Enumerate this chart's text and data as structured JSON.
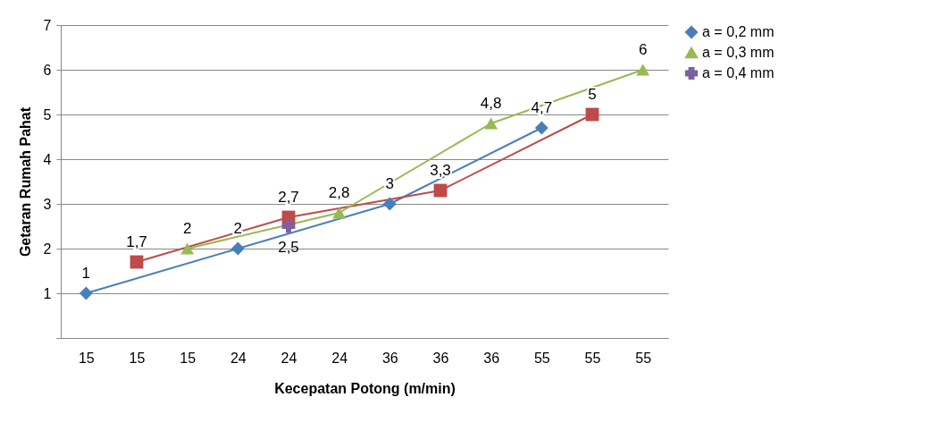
{
  "chart_data": {
    "type": "line",
    "xlabel": "Kecepatan Potong (m/min)",
    "ylabel": "Getaran Rumah Pahat",
    "categories": [
      "15",
      "15",
      "15",
      "24",
      "24",
      "24",
      "36",
      "36",
      "36",
      "55",
      "55",
      "55"
    ],
    "series": [
      {
        "name": "a = 0,2 mm",
        "color": "#4a7ebb",
        "marker": "diamond",
        "values": [
          1,
          null,
          null,
          2,
          null,
          null,
          3,
          null,
          null,
          4.7,
          null,
          null
        ],
        "value_labels": [
          "1",
          null,
          null,
          "2",
          null,
          null,
          "3",
          null,
          null,
          "4,7",
          null,
          null
        ]
      },
      {
        "color": "#be4b48",
        "marker": "square",
        "values": [
          null,
          1.7,
          null,
          null,
          2.7,
          null,
          null,
          3.3,
          null,
          null,
          5,
          null
        ],
        "value_labels": [
          null,
          "1,7",
          null,
          null,
          "2,7",
          null,
          null,
          "3,3",
          null,
          null,
          "5",
          null
        ]
      },
      {
        "name": "a = 0,3 mm",
        "color": "#98b954",
        "marker": "triangle",
        "values": [
          null,
          null,
          2,
          null,
          null,
          2.8,
          null,
          null,
          4.8,
          null,
          null,
          6
        ],
        "value_labels": [
          null,
          null,
          "2",
          null,
          null,
          "2,8",
          null,
          null,
          "4,8",
          null,
          null,
          "6"
        ]
      },
      {
        "name": "a = 0,4 mm",
        "color": "#7d60a0",
        "marker": "cross",
        "values": [
          null,
          null,
          null,
          null,
          2.5,
          null,
          null,
          null,
          null,
          null,
          null,
          null
        ],
        "value_labels": [
          null,
          null,
          null,
          null,
          "2,5",
          null,
          null,
          null,
          null,
          null,
          null,
          null
        ]
      }
    ],
    "ylim": [
      0,
      7
    ],
    "yticks": [
      {
        "value": 0,
        "label": null
      },
      1,
      2,
      3,
      4,
      5,
      6,
      7
    ],
    "grid": "y",
    "legend": "right"
  }
}
